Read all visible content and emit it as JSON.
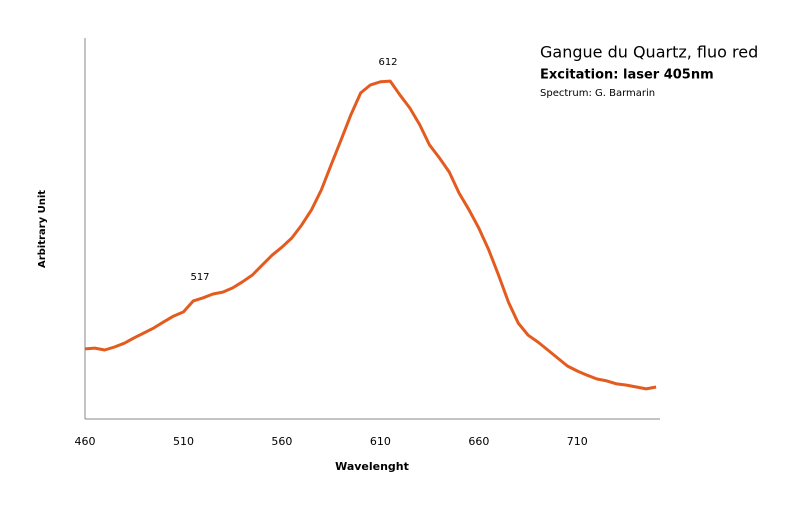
{
  "chart_data": {
    "type": "line",
    "title": "Gangue du Quartz, fluo red",
    "subtitle": "Excitation: laser 405nm",
    "credit": "Spectrum: G. Barmarin",
    "annotations": [
      "517",
      "612"
    ],
    "x_label": "Wavelenght",
    "y_label": "Arbitrary Unit",
    "x": [
      460,
      465,
      470,
      475,
      480,
      485,
      490,
      495,
      500,
      505,
      510,
      515,
      520,
      525,
      530,
      535,
      540,
      545,
      550,
      555,
      560,
      565,
      570,
      575,
      580,
      585,
      590,
      595,
      600,
      605,
      610,
      615,
      620,
      625,
      630,
      635,
      640,
      645,
      650,
      655,
      660,
      665,
      670,
      675,
      680,
      685,
      690,
      695,
      700,
      705,
      710,
      715,
      720,
      725,
      730,
      735,
      740,
      745,
      750
    ],
    "series": [
      {
        "name": "Spectrum",
        "color": "#e35b1f",
        "values": [
          18.4,
          18.6,
          18.1,
          18.9,
          19.9,
          21.3,
          22.6,
          23.9,
          25.5,
          27.0,
          28.1,
          31.0,
          31.8,
          32.8,
          33.3,
          34.4,
          36.0,
          37.8,
          40.4,
          43.0,
          45.1,
          47.5,
          50.9,
          54.9,
          60.1,
          66.7,
          73.2,
          79.8,
          85.6,
          87.7,
          88.5,
          88.7,
          85.0,
          81.6,
          77.2,
          71.9,
          68.5,
          64.8,
          59.3,
          54.9,
          50.1,
          44.4,
          37.8,
          30.7,
          25.2,
          22.0,
          20.2,
          18.1,
          16.0,
          13.9,
          12.6,
          11.5,
          10.5,
          10.0,
          9.2,
          8.9,
          8.4,
          7.9,
          8.4
        ]
      }
    ],
    "xlim": [
      460,
      752
    ],
    "xticks": [
      460,
      510,
      560,
      610,
      660,
      710
    ],
    "ylim": [
      0,
      100
    ]
  }
}
